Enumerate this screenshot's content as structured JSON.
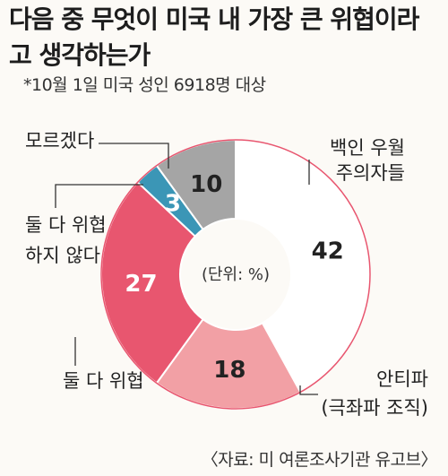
{
  "title": "다음 중 무엇이 미국 내 가장 큰 위협이라고 생각하는가",
  "subtitle": "*10월 1일 미국 성인 6918명 대상",
  "source": "〈자료: 미 여론조사기관 유고브〉",
  "chart_data": {
    "type": "pie",
    "style": "donut",
    "unit_label": "(단위: %)",
    "slices": [
      {
        "label": "백인 우월 주의자들",
        "label_lines": [
          "백인 우월",
          "주의자들"
        ],
        "value": 42,
        "color": "#ffffff"
      },
      {
        "label": "안티파 (극좌파 조직)",
        "label_lines": [
          "안티파",
          "(극좌파 조직)"
        ],
        "value": 18,
        "color": "#f2a0a5"
      },
      {
        "label": "둘 다 위협",
        "label_lines": [
          "둘 다 위협"
        ],
        "value": 27,
        "color": "#e8566f"
      },
      {
        "label": "둘 다 위협 하지 않다",
        "label_lines": [
          "둘 다 위협",
          "하지 않다"
        ],
        "value": 3,
        "color": "#3b96b6"
      },
      {
        "label": "모르겠다",
        "label_lines": [
          "모르겠다"
        ],
        "value": 10,
        "color": "#a5a5a5"
      }
    ],
    "slice_text_colors": [
      "#222222",
      "#222222",
      "#ffffff",
      "#ffffff",
      "#222222"
    ],
    "border_color": "#e8566f"
  }
}
